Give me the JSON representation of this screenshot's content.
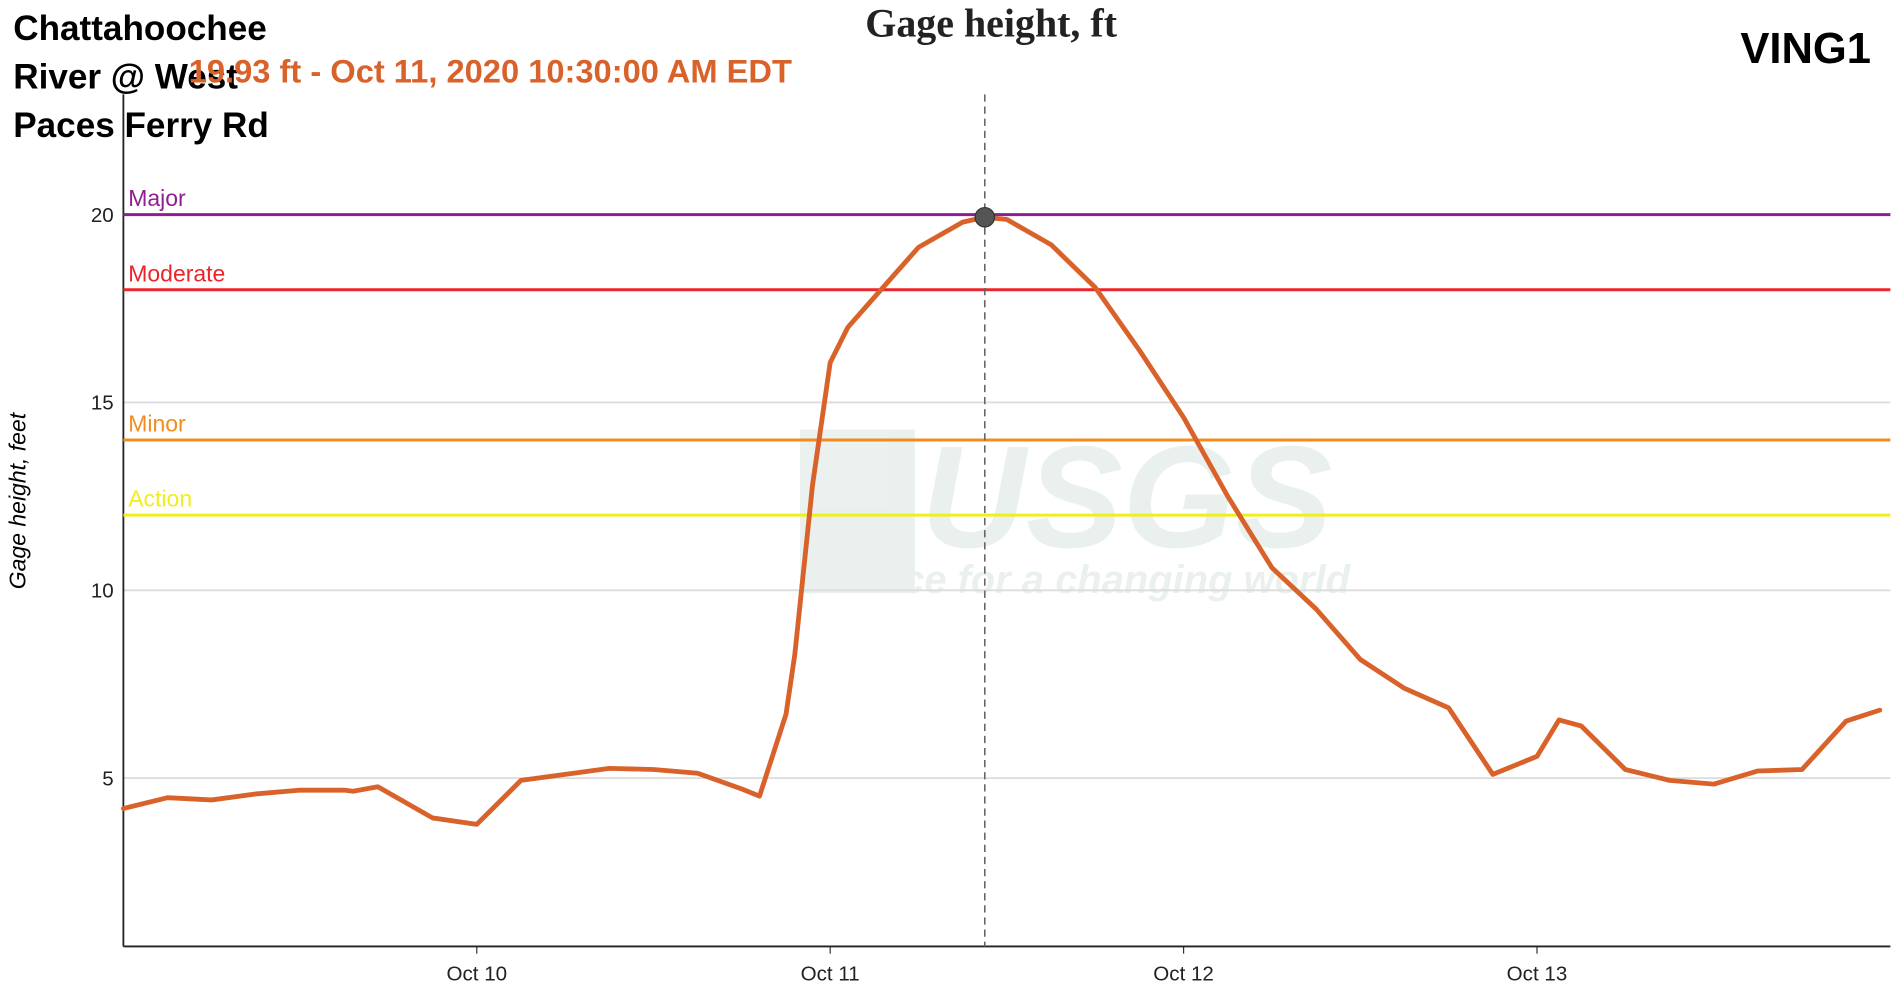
{
  "chart_data": {
    "type": "line",
    "title": "Gage height, ft",
    "station": "Chattahoochee River @ West Paces Ferry Rd",
    "site_id": "VING1",
    "y_label": "Gage height, feet",
    "watermark": {
      "logo": "USGS",
      "tagline": "science for a changing world"
    },
    "x": [
      0,
      0.125,
      0.25,
      0.375,
      0.5,
      0.625,
      0.65,
      0.72,
      0.875,
      1.0,
      1.125,
      1.25,
      1.375,
      1.5,
      1.625,
      1.75,
      1.8,
      1.875,
      1.9,
      1.95,
      2.0,
      2.05,
      2.125,
      2.25,
      2.375,
      2.4375,
      2.5,
      2.625,
      2.75,
      2.875,
      3.0,
      3.125,
      3.25,
      3.375,
      3.5,
      3.625,
      3.75,
      3.875,
      4.0,
      4.0625,
      4.125,
      4.25,
      4.375,
      4.5,
      4.625,
      4.75,
      4.875,
      4.97
    ],
    "series": [
      {
        "name": "Gage height",
        "color": "#d9622b",
        "values": [
          4.19,
          4.48,
          4.42,
          4.58,
          4.68,
          4.68,
          4.65,
          4.77,
          3.94,
          3.77,
          4.94,
          5.1,
          5.26,
          5.23,
          5.13,
          4.71,
          4.52,
          6.7,
          8.3,
          12.8,
          16.06,
          17.0,
          17.8,
          19.13,
          19.8,
          19.93,
          19.87,
          19.2,
          18.06,
          16.39,
          14.6,
          12.5,
          10.6,
          9.5,
          8.16,
          7.39,
          6.87,
          5.1,
          5.58,
          6.55,
          6.39,
          5.23,
          4.94,
          4.84,
          5.19,
          5.23,
          6.52,
          6.81
        ]
      }
    ],
    "thresholds": [
      {
        "name": "Major",
        "value": 20,
        "color": "#8e1f8e"
      },
      {
        "name": "Moderate",
        "value": 18,
        "color": "#e8262b"
      },
      {
        "name": "Minor",
        "value": 14,
        "color": "#f28c1e"
      },
      {
        "name": "Action",
        "value": 12,
        "color": "#f2ee1c"
      }
    ],
    "highlight": {
      "x": 2.4375,
      "value": 19.93,
      "label": "19.93 ft - Oct 11, 2020 10:30:00 AM EDT",
      "color": "#d9622b"
    },
    "xlim": [
      0,
      5
    ],
    "xticks": [
      {
        "value": 1,
        "label": "Oct 10"
      },
      {
        "value": 2,
        "label": "Oct 11"
      },
      {
        "value": 3,
        "label": "Oct 12"
      },
      {
        "value": 4,
        "label": "Oct 13"
      }
    ],
    "ylim": [
      0.52,
      23.2
    ],
    "yticks": [
      5,
      10,
      15,
      20
    ],
    "grid": true
  }
}
